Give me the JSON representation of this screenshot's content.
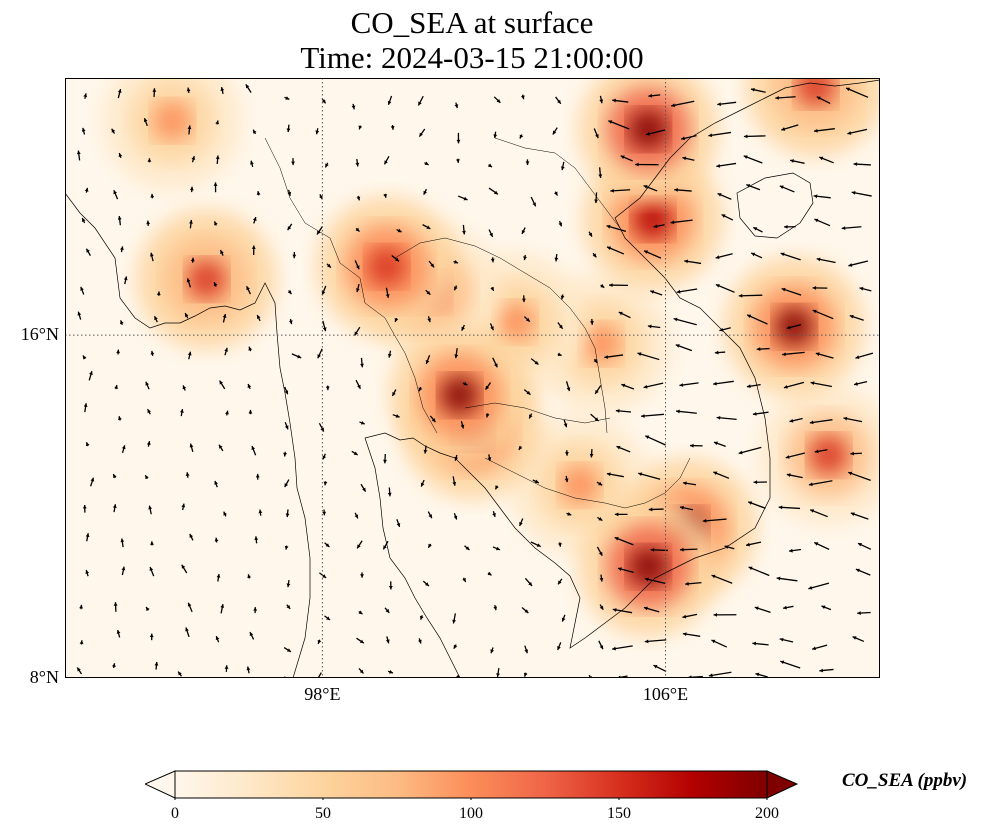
{
  "map": {
    "title": "CO_SEA at surface",
    "subtitle": "Time: 2024-03-15 21:00:00",
    "variable": "CO_SEA",
    "units": "ppbv",
    "lon_range": [
      92,
      111
    ],
    "lat_range": [
      8,
      22
    ],
    "lat_ticks": [
      {
        "value": 16,
        "label": "16°N"
      },
      {
        "value": 8,
        "label": "8°N"
      }
    ],
    "lon_ticks": [
      {
        "value": 98,
        "label": "98°E"
      },
      {
        "value": 106,
        "label": "106°E"
      }
    ],
    "gridlines": "dotted",
    "coastlines": true,
    "borders": true,
    "wind_vectors": true,
    "colormap": "OrRd",
    "extend": "both"
  },
  "colorbar": {
    "label": "CO_SEA (ppbv)",
    "min": 0,
    "max": 200,
    "ticks": [
      "0",
      "50",
      "100",
      "150",
      "200"
    ],
    "colors": [
      "#fff7ec",
      "#fee8c8",
      "#fdd49e",
      "#fdbb84",
      "#fc8d59",
      "#ef6548",
      "#d7301f",
      "#b30000",
      "#7f0000"
    ]
  },
  "chart_data": {
    "type": "heatmap",
    "title": "CO_SEA at surface",
    "subtitle": "Time: 2024-03-15 21:00:00",
    "xlim": [
      92,
      111
    ],
    "ylim": [
      8,
      22
    ],
    "value_range": [
      0,
      200
    ],
    "hotspots": [
      {
        "lon": 105.6,
        "lat": 20.8,
        "value": 210
      },
      {
        "lon": 105.7,
        "lat": 18.7,
        "value": 180
      },
      {
        "lon": 105.6,
        "lat": 10.6,
        "value": 210
      },
      {
        "lon": 106.5,
        "lat": 11.5,
        "value": 200
      },
      {
        "lon": 109.0,
        "lat": 16.2,
        "value": 190
      },
      {
        "lon": 101.2,
        "lat": 14.6,
        "value": 200
      },
      {
        "lon": 101.5,
        "lat": 13.8,
        "value": 180
      },
      {
        "lon": 99.5,
        "lat": 17.6,
        "value": 160
      },
      {
        "lon": 95.3,
        "lat": 17.3,
        "value": 150
      },
      {
        "lon": 109.8,
        "lat": 13.2,
        "value": 140
      },
      {
        "lon": 100.5,
        "lat": 17.0,
        "value": 120
      },
      {
        "lon": 102.5,
        "lat": 16.3,
        "value": 110
      },
      {
        "lon": 104.5,
        "lat": 15.8,
        "value": 100
      },
      {
        "lon": 94.5,
        "lat": 21.0,
        "value": 110
      },
      {
        "lon": 109.5,
        "lat": 21.8,
        "value": 150
      },
      {
        "lon": 104.0,
        "lat": 12.5,
        "value": 90
      }
    ]
  }
}
